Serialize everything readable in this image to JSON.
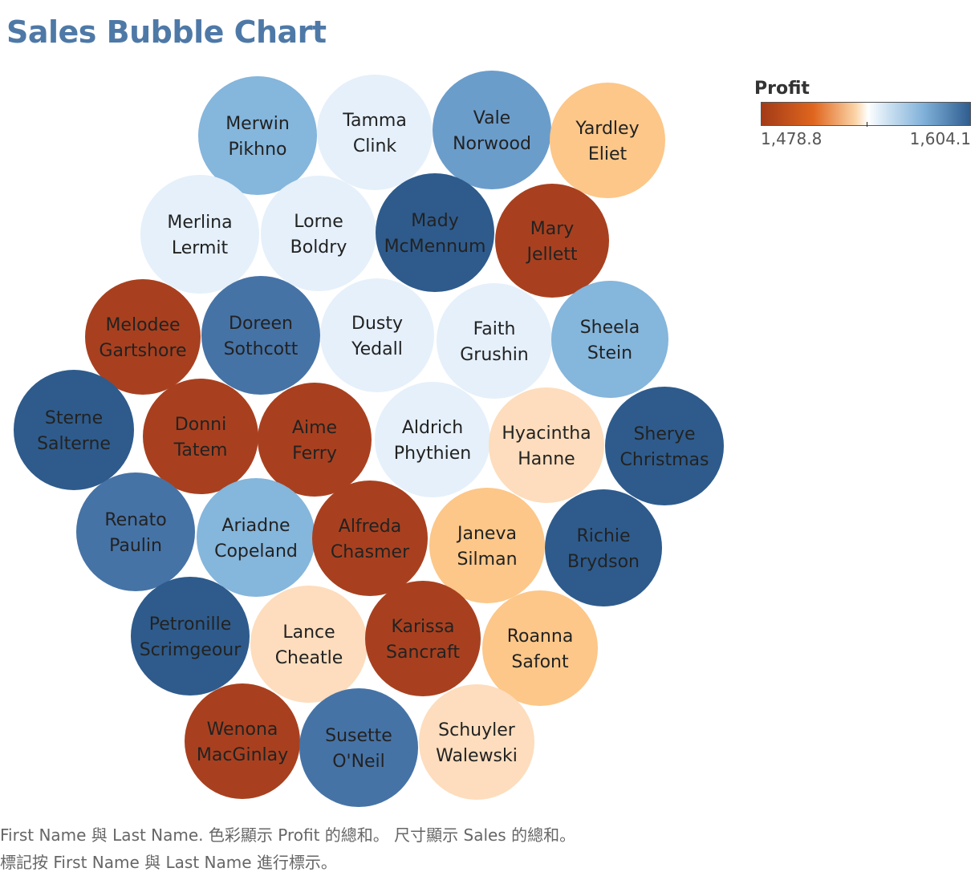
{
  "title": "Sales Bubble Chart",
  "legend": {
    "title": "Profit",
    "min_label": "1,478.8",
    "max_label": "1,604.1"
  },
  "caption": {
    "line1": "First Name 與 Last Name. 色彩顯示 Profit 的總和。 尺寸顯示 Sales 的總和。",
    "line2": "標記按 First Name 與 Last Name 進行標示。"
  },
  "colors": {
    "dark_orange": "#a8401f",
    "light_orange": "#fcc789",
    "pale_orange": "#fdddbd",
    "very_light_blue": "#e5f0fa",
    "light_blue": "#85b6dc",
    "medium_blue": "#6b9dcb",
    "steel_blue": "#4673a6",
    "dark_blue": "#2e5b8c",
    "title_blue": "#4e79a7"
  },
  "chart_data": {
    "type": "bubble",
    "color_measure": "Profit",
    "size_measure": "Sales",
    "color_range": [
      1478.8,
      1604.1
    ],
    "bubbles": [
      {
        "first": "Merwin",
        "last": "Pikhno",
        "color": "light_blue"
      },
      {
        "first": "Tamma",
        "last": "Clink",
        "color": "very_light_blue"
      },
      {
        "first": "Vale",
        "last": "Norwood",
        "color": "medium_blue"
      },
      {
        "first": "Yardley",
        "last": "Eliet",
        "color": "light_orange"
      },
      {
        "first": "Merlina",
        "last": "Lermit",
        "color": "very_light_blue"
      },
      {
        "first": "Lorne",
        "last": "Boldry",
        "color": "very_light_blue"
      },
      {
        "first": "Mady",
        "last": "McMennum",
        "color": "dark_blue"
      },
      {
        "first": "Mary",
        "last": "Jellett",
        "color": "dark_orange"
      },
      {
        "first": "Melodee",
        "last": "Gartshore",
        "color": "dark_orange"
      },
      {
        "first": "Doreen",
        "last": "Sothcott",
        "color": "steel_blue"
      },
      {
        "first": "Dusty",
        "last": "Yedall",
        "color": "very_light_blue"
      },
      {
        "first": "Faith",
        "last": "Grushin",
        "color": "very_light_blue"
      },
      {
        "first": "Sheela",
        "last": "Stein",
        "color": "light_blue"
      },
      {
        "first": "Sterne",
        "last": "Salterne",
        "color": "dark_blue"
      },
      {
        "first": "Donni",
        "last": "Tatem",
        "color": "dark_orange"
      },
      {
        "first": "Aime",
        "last": "Ferry",
        "color": "dark_orange"
      },
      {
        "first": "Aldrich",
        "last": "Phythien",
        "color": "very_light_blue"
      },
      {
        "first": "Hyacintha",
        "last": "Hanne",
        "color": "pale_orange"
      },
      {
        "first": "Sherye",
        "last": "Christmas",
        "color": "dark_blue"
      },
      {
        "first": "Renato",
        "last": "Paulin",
        "color": "steel_blue"
      },
      {
        "first": "Ariadne",
        "last": "Copeland",
        "color": "light_blue"
      },
      {
        "first": "Alfreda",
        "last": "Chasmer",
        "color": "dark_orange"
      },
      {
        "first": "Janeva",
        "last": "Silman",
        "color": "light_orange"
      },
      {
        "first": "Richie",
        "last": "Brydson",
        "color": "dark_blue"
      },
      {
        "first": "Petronille",
        "last": "Scrimgeour",
        "color": "dark_blue"
      },
      {
        "first": "Lance",
        "last": "Cheatle",
        "color": "pale_orange"
      },
      {
        "first": "Karissa",
        "last": "Sancraft",
        "color": "dark_orange"
      },
      {
        "first": "Roanna",
        "last": "Safont",
        "color": "light_orange"
      },
      {
        "first": "Wenona",
        "last": "MacGinlay",
        "color": "dark_orange"
      },
      {
        "first": "Susette",
        "last": "O'Neil",
        "color": "steel_blue"
      },
      {
        "first": "Schuyler",
        "last": "Walewski",
        "color": "pale_orange"
      }
    ]
  }
}
